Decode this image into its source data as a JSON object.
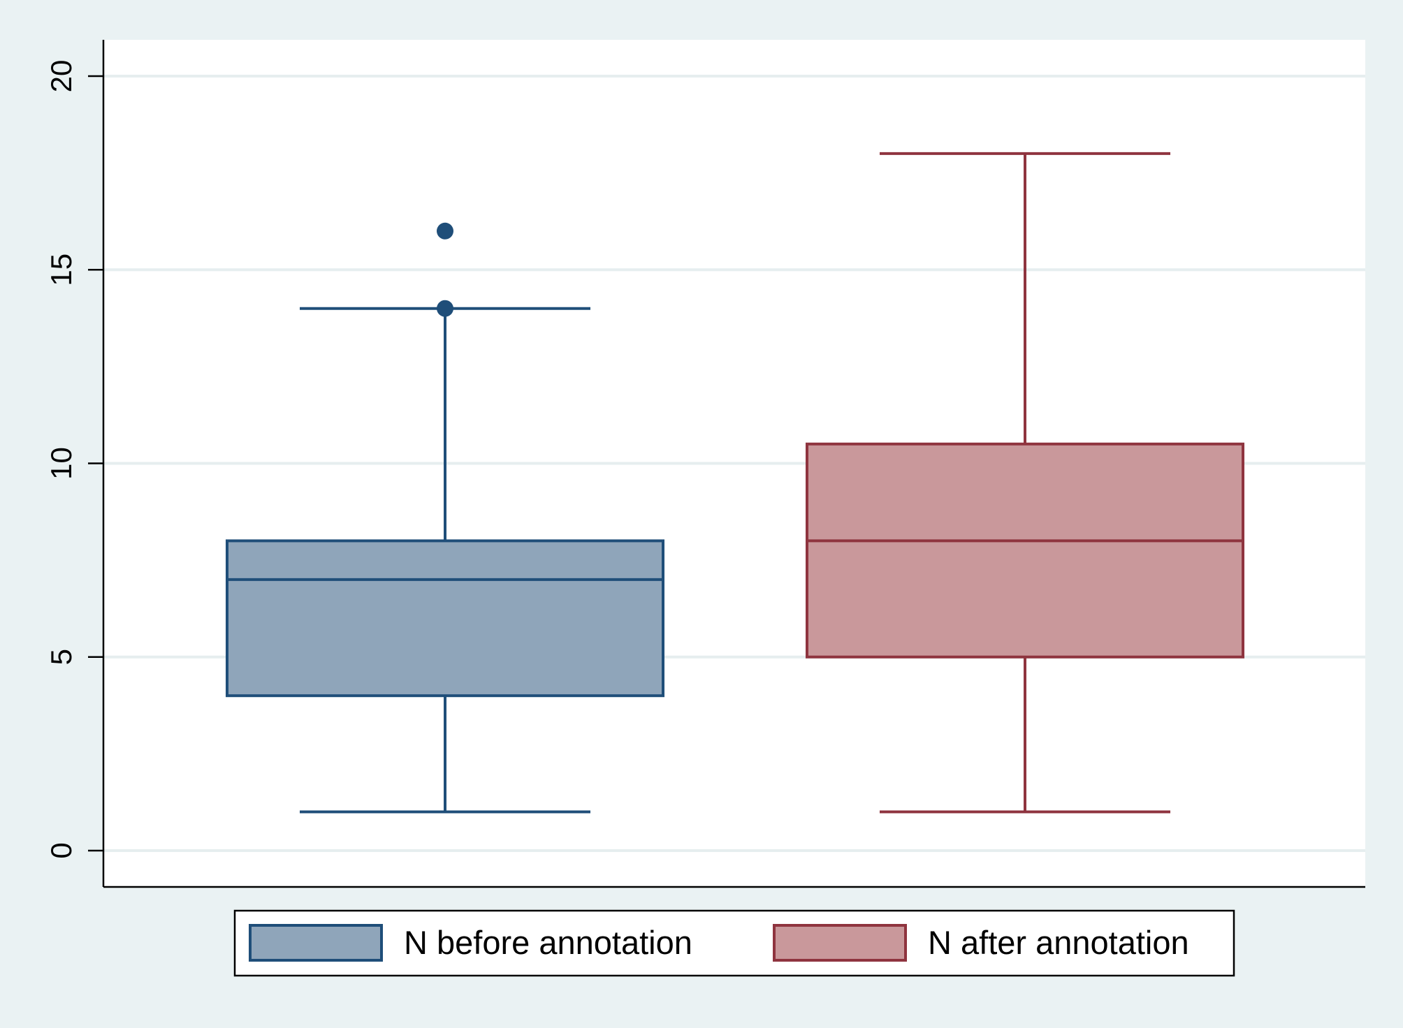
{
  "chart_data": {
    "type": "box",
    "title": "",
    "xlabel": "",
    "ylabel": "",
    "ylim": [
      -0.9,
      21
    ],
    "y_ticks": [
      0,
      5,
      10,
      15,
      20
    ],
    "grid": true,
    "legend_position": "bottom",
    "series": [
      {
        "name": "N before annotation",
        "color": "#1f4e79",
        "fill": "#8fa5ba",
        "min": 1,
        "q1": 4,
        "median": 7,
        "q3": 8,
        "max": 14,
        "outliers": [
          14,
          16
        ]
      },
      {
        "name": "N after annotation",
        "color": "#8f343f",
        "fill": "#c9989b",
        "min": 1,
        "q1": 5,
        "median": 8,
        "q3": 10.5,
        "max": 18,
        "outliers": []
      }
    ]
  }
}
